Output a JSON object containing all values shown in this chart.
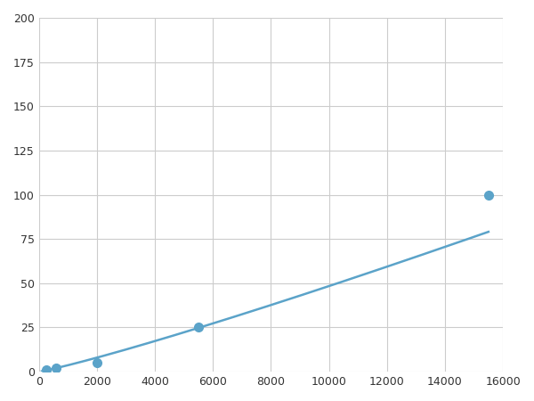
{
  "x": [
    250,
    600,
    2000,
    5500,
    15500
  ],
  "y": [
    1,
    2,
    5,
    25,
    100
  ],
  "line_color": "#5ba3c9",
  "marker_color": "#5ba3c9",
  "marker_size": 7,
  "linewidth": 1.8,
  "xlim": [
    0,
    16000
  ],
  "ylim": [
    0,
    200
  ],
  "xticks": [
    0,
    2000,
    4000,
    6000,
    8000,
    10000,
    12000,
    14000,
    16000
  ],
  "yticks": [
    0,
    25,
    50,
    75,
    100,
    125,
    150,
    175,
    200
  ],
  "grid_color": "#cccccc",
  "background_color": "#ffffff",
  "fig_background_color": "#ffffff"
}
